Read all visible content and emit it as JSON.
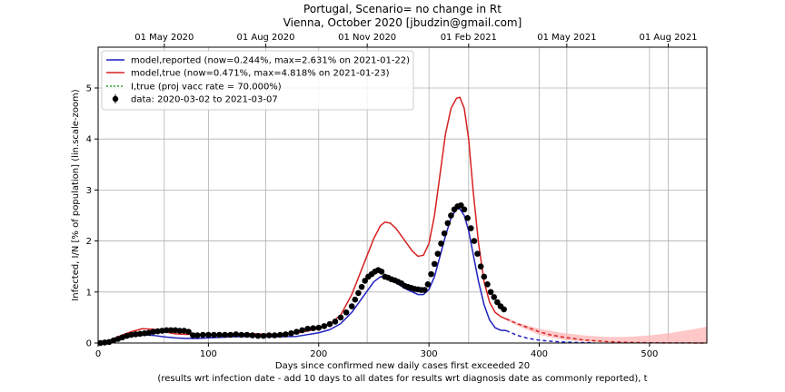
{
  "chart_data": {
    "type": "line",
    "title_line1": "Portugal, Scenario= no change in Rt",
    "title_line2": "Vienna, October 2020 [jbudzin@gmail.com]",
    "xlabel_line1": "Days since confirmed new daily cases first exceeded 20",
    "xlabel_line2": "(results wrt infection date - add 10 days to all dates for results wrt diagnosis date as commonly reported), t",
    "ylabel": "Infected, I/N [% of population] (lin.scale-zoom)",
    "xlim": [
      0,
      552
    ],
    "ylim": [
      0,
      5.8
    ],
    "x_ticks": [
      0,
      100,
      200,
      300,
      400,
      500
    ],
    "y_ticks": [
      0,
      1,
      2,
      3,
      4,
      5
    ],
    "top_ticks": [
      {
        "x": 60,
        "label": "01 May 2020"
      },
      {
        "x": 152,
        "label": "01 Aug 2020"
      },
      {
        "x": 244,
        "label": "01 Nov 2020"
      },
      {
        "x": 336,
        "label": "01 Feb 2021"
      },
      {
        "x": 425,
        "label": "01 May 2021"
      },
      {
        "x": 517,
        "label": "01 Aug 2021"
      }
    ],
    "grid": true,
    "legend_position": "top-left",
    "legend": [
      "model,reported (now=0.244%, max=2.631% on 2021-01-22)",
      "model,true (now=0.471%, max=4.818% on 2021-01-23)",
      "I,true (proj vacc rate = 70.000%)",
      "data: 2020-03-02 to 2021-03-07"
    ],
    "colors": {
      "reported": "#1f1fbf",
      "true": "#d62020",
      "vacc": "#2ca02c",
      "data": "#000000",
      "band": "#ffb0b0"
    },
    "series": [
      {
        "key": "reported",
        "x": [
          0,
          10,
          20,
          30,
          40,
          50,
          60,
          70,
          80,
          90,
          100,
          120,
          140,
          160,
          180,
          200,
          210,
          220,
          230,
          240,
          250,
          256,
          260,
          270,
          280,
          290,
          295,
          300,
          305,
          310,
          315,
          320,
          325,
          328,
          332,
          336,
          340,
          345,
          350,
          355,
          360,
          365,
          370
        ],
        "y": [
          0,
          0.03,
          0.08,
          0.13,
          0.16,
          0.15,
          0.12,
          0.1,
          0.09,
          0.09,
          0.1,
          0.12,
          0.13,
          0.12,
          0.13,
          0.2,
          0.26,
          0.38,
          0.6,
          0.9,
          1.2,
          1.3,
          1.29,
          1.18,
          1.05,
          0.95,
          0.95,
          1.05,
          1.3,
          1.7,
          2.1,
          2.45,
          2.63,
          2.63,
          2.5,
          2.2,
          1.75,
          1.2,
          0.75,
          0.45,
          0.3,
          0.25,
          0.244
        ]
      },
      {
        "key": "reported_proj",
        "x": [
          370,
          380,
          390,
          400,
          410,
          420,
          430,
          440,
          450
        ],
        "y": [
          0.244,
          0.15,
          0.09,
          0.055,
          0.035,
          0.022,
          0.013,
          0.007,
          0.003
        ]
      },
      {
        "key": "true",
        "x": [
          0,
          10,
          20,
          30,
          40,
          50,
          60,
          70,
          80,
          90,
          100,
          120,
          140,
          160,
          180,
          200,
          210,
          220,
          230,
          240,
          250,
          256,
          260,
          265,
          270,
          280,
          285,
          290,
          295,
          300,
          305,
          310,
          315,
          320,
          325,
          328,
          332,
          336,
          340,
          345,
          350,
          355,
          360,
          365,
          370
        ],
        "y": [
          0,
          0.05,
          0.14,
          0.22,
          0.28,
          0.27,
          0.22,
          0.18,
          0.17,
          0.17,
          0.17,
          0.18,
          0.18,
          0.17,
          0.19,
          0.28,
          0.37,
          0.55,
          0.95,
          1.5,
          2.05,
          2.3,
          2.37,
          2.35,
          2.25,
          1.95,
          1.8,
          1.7,
          1.72,
          1.95,
          2.5,
          3.3,
          4.1,
          4.6,
          4.8,
          4.818,
          4.6,
          4.0,
          3.0,
          1.95,
          1.2,
          0.8,
          0.6,
          0.52,
          0.471
        ]
      },
      {
        "key": "true_proj",
        "x": [
          370,
          380,
          390,
          400,
          410,
          420,
          440,
          460,
          480,
          500,
          520,
          540,
          552
        ],
        "y": [
          0.471,
          0.38,
          0.3,
          0.22,
          0.16,
          0.12,
          0.06,
          0.03,
          0.012,
          0.005,
          0.002,
          0.001,
          0.0
        ]
      },
      {
        "key": "band_upper",
        "x": [
          370,
          380,
          400,
          420,
          440,
          460,
          480,
          500,
          520,
          540,
          552
        ],
        "y": [
          0.5,
          0.4,
          0.28,
          0.2,
          0.15,
          0.12,
          0.12,
          0.15,
          0.2,
          0.27,
          0.32
        ]
      },
      {
        "key": "band_lower",
        "x": [
          370,
          380,
          400,
          420,
          440,
          460,
          480,
          500,
          520,
          540,
          552
        ],
        "y": [
          0.45,
          0.34,
          0.16,
          0.07,
          0.03,
          0.01,
          0.0,
          0.0,
          0.0,
          0.0,
          0.0
        ]
      }
    ],
    "data_points": {
      "x": [
        2,
        6,
        10,
        14,
        18,
        22,
        26,
        30,
        34,
        38,
        42,
        46,
        50,
        54,
        58,
        62,
        66,
        70,
        74,
        78,
        82,
        86,
        90,
        95,
        100,
        105,
        110,
        115,
        120,
        125,
        130,
        135,
        140,
        145,
        150,
        155,
        160,
        165,
        170,
        175,
        180,
        185,
        190,
        195,
        200,
        205,
        210,
        215,
        220,
        225,
        230,
        233,
        236,
        239,
        242,
        245,
        248,
        251,
        254,
        257,
        260,
        263,
        266,
        269,
        272,
        275,
        278,
        281,
        284,
        287,
        290,
        293,
        296,
        299,
        302,
        305,
        308,
        311,
        314,
        317,
        320,
        323,
        326,
        329,
        332,
        335,
        338,
        341,
        344,
        347,
        350,
        353,
        356,
        359,
        362,
        365,
        368
      ],
      "y": [
        0.0,
        0.01,
        0.02,
        0.05,
        0.08,
        0.11,
        0.14,
        0.16,
        0.17,
        0.18,
        0.19,
        0.2,
        0.22,
        0.23,
        0.24,
        0.25,
        0.25,
        0.25,
        0.24,
        0.24,
        0.22,
        0.15,
        0.15,
        0.16,
        0.16,
        0.16,
        0.16,
        0.16,
        0.16,
        0.17,
        0.16,
        0.16,
        0.15,
        0.14,
        0.14,
        0.15,
        0.15,
        0.16,
        0.17,
        0.19,
        0.22,
        0.25,
        0.28,
        0.29,
        0.3,
        0.33,
        0.37,
        0.42,
        0.5,
        0.6,
        0.72,
        0.85,
        0.98,
        1.1,
        1.22,
        1.3,
        1.35,
        1.4,
        1.43,
        1.4,
        1.3,
        1.28,
        1.25,
        1.23,
        1.2,
        1.17,
        1.12,
        1.1,
        1.08,
        1.06,
        1.05,
        1.04,
        1.04,
        1.15,
        1.35,
        1.55,
        1.75,
        1.95,
        2.15,
        2.35,
        2.5,
        2.62,
        2.68,
        2.7,
        2.62,
        2.45,
        2.25,
        2.0,
        1.75,
        1.5,
        1.3,
        1.15,
        1.0,
        0.9,
        0.8,
        0.72,
        0.66
      ]
    }
  }
}
